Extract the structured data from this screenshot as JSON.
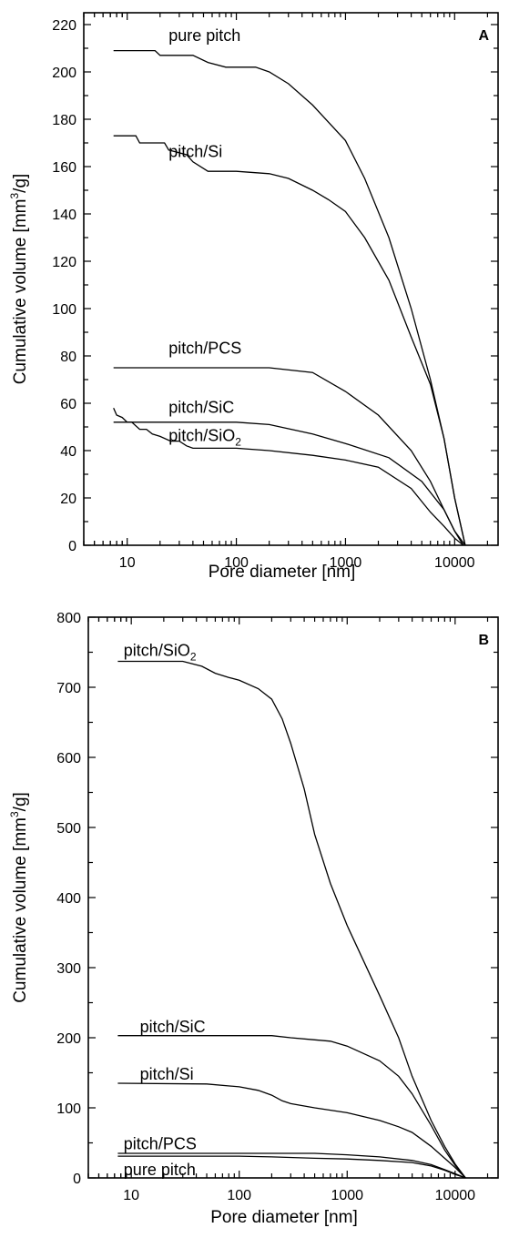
{
  "chart_data": [
    {
      "type": "line",
      "panel_label": "A",
      "xlabel": "Pore diameter [nm]",
      "ylabel": "Cumulative volume [mm³/g]",
      "ylabel_main": "Cumulative volume [mm",
      "ylabel_sup": "3",
      "ylabel_end": "/g]",
      "x_scale": "log",
      "xlim": [
        4,
        25000
      ],
      "ylim": [
        0,
        225
      ],
      "x_ticks": [
        10,
        100,
        1000,
        10000
      ],
      "x_tick_labels": [
        "10",
        "100",
        "1000",
        "10000"
      ],
      "y_ticks": [
        0,
        20,
        40,
        60,
        80,
        100,
        120,
        140,
        160,
        180,
        200,
        220
      ],
      "y_tick_labels": [
        "0",
        "20",
        "40",
        "60",
        "80",
        "100",
        "120",
        "140",
        "160",
        "180",
        "200",
        "220"
      ],
      "series": [
        {
          "name": "pure pitch",
          "label_main": "pure pitch",
          "label_sub": "",
          "x": [
            7.5,
            18,
            20,
            40,
            55,
            80,
            100,
            150,
            200,
            300,
            500,
            1000,
            1500,
            2500,
            4000,
            6000,
            8000,
            10000,
            12500
          ],
          "y": [
            209,
            209,
            207,
            207,
            204,
            202,
            202,
            202,
            200,
            195,
            186,
            171,
            155,
            130,
            100,
            70,
            45,
            20,
            0
          ],
          "label_x": 24,
          "label_y": 213
        },
        {
          "name": "pitch/Si",
          "label_main": "pitch/Si",
          "label_sub": "",
          "x": [
            7.5,
            12,
            13,
            22,
            24,
            35,
            40,
            55,
            70,
            100,
            200,
            300,
            500,
            700,
            1000,
            1500,
            2500,
            4000,
            6000,
            8000,
            10000,
            12500
          ],
          "y": [
            173,
            173,
            170,
            170,
            167,
            165,
            162,
            158,
            158,
            158,
            157,
            155,
            150,
            146,
            141,
            130,
            112,
            88,
            68,
            45,
            20,
            0
          ],
          "label_x": 24,
          "label_y": 164
        },
        {
          "name": "pitch/PCS",
          "label_main": "pitch/PCS",
          "label_sub": "",
          "x": [
            7.5,
            100,
            200,
            500,
            1000,
            2000,
            4000,
            6000,
            8000,
            10000,
            12000
          ],
          "y": [
            75,
            75,
            75,
            73,
            65,
            55,
            40,
            27,
            15,
            6,
            0
          ],
          "label_x": 24,
          "label_y": 81
        },
        {
          "name": "pitch/SiC",
          "label_main": "pitch/SiC",
          "label_sub": "",
          "x": [
            7.5,
            100,
            200,
            500,
            1000,
            2500,
            5000,
            8000,
            10000,
            12500
          ],
          "y": [
            52,
            52,
            51,
            47,
            43,
            37,
            27,
            15,
            6,
            0
          ],
          "label_x": 24,
          "label_y": 56
        },
        {
          "name": "pitch/SiO2",
          "label_main": "pitch/SiO",
          "label_sub": "2",
          "x": [
            7.5,
            8,
            9,
            10,
            11,
            13,
            15,
            17,
            20,
            25,
            30,
            35,
            40,
            100,
            200,
            500,
            1000,
            2000,
            4000,
            6000,
            8000,
            10000,
            12000
          ],
          "y": [
            58,
            55,
            54,
            52,
            52,
            49,
            49,
            47,
            46,
            44,
            44,
            42,
            41,
            41,
            40,
            38,
            36,
            33,
            24,
            14,
            8,
            3,
            0
          ],
          "label_x": 24,
          "label_y": 44
        }
      ],
      "grid": false
    },
    {
      "type": "line",
      "panel_label": "B",
      "xlabel": "Pore diameter [nm]",
      "ylabel": "Cumulative volume [mm³/g]",
      "ylabel_main": "Cumulative volume [mm",
      "ylabel_sup": "3",
      "ylabel_end": "/g]",
      "x_scale": "log",
      "xlim": [
        4,
        25000
      ],
      "ylim": [
        0,
        800
      ],
      "x_ticks": [
        10,
        100,
        1000,
        10000
      ],
      "x_tick_labels": [
        "10",
        "100",
        "1000",
        "10000"
      ],
      "y_ticks": [
        0,
        100,
        200,
        300,
        400,
        500,
        600,
        700,
        800
      ],
      "y_tick_labels": [
        "0",
        "100",
        "200",
        "300",
        "400",
        "500",
        "600",
        "700",
        "800"
      ],
      "series": [
        {
          "name": "pitch/SiO2",
          "label_main": "pitch/SiO",
          "label_sub": "2",
          "x": [
            7.5,
            30,
            45,
            60,
            80,
            100,
            150,
            200,
            250,
            300,
            400,
            500,
            700,
            1000,
            2000,
            3000,
            4000,
            6000,
            8000,
            10000,
            12500
          ],
          "y": [
            737,
            737,
            730,
            720,
            714,
            710,
            698,
            683,
            655,
            620,
            555,
            490,
            420,
            360,
            260,
            200,
            145,
            82,
            45,
            20,
            0
          ],
          "label_x": 8.5,
          "label_y": 745
        },
        {
          "name": "pitch/SiC",
          "label_main": "pitch/SiC",
          "label_sub": "",
          "x": [
            7.5,
            100,
            200,
            300,
            500,
            700,
            1000,
            2000,
            3000,
            4000,
            6000,
            8000,
            10000,
            12500
          ],
          "y": [
            203,
            203,
            203,
            200,
            197,
            195,
            188,
            167,
            145,
            120,
            75,
            40,
            18,
            0
          ],
          "label_x": 12,
          "label_y": 208
        },
        {
          "name": "pitch/Si",
          "label_main": "pitch/Si",
          "label_sub": "",
          "x": [
            7.5,
            50,
            100,
            150,
            200,
            250,
            300,
            500,
            1000,
            2000,
            3000,
            4000,
            6000,
            8000,
            10000,
            12500
          ],
          "y": [
            135,
            134,
            130,
            125,
            118,
            110,
            106,
            100,
            93,
            82,
            73,
            65,
            45,
            28,
            15,
            0
          ],
          "label_x": 12,
          "label_y": 140
        },
        {
          "name": "pitch/PCS",
          "label_main": "pitch/PCS",
          "label_sub": "",
          "x": [
            7.5,
            500,
            1000,
            2000,
            4000,
            6000,
            8000,
            10000,
            12500
          ],
          "y": [
            35,
            35,
            33,
            30,
            25,
            19,
            12,
            6,
            0
          ],
          "label_x": 8.5,
          "label_y": 41
        },
        {
          "name": "pure pitch",
          "label_main": "pure pitch",
          "label_sub": "",
          "x": [
            7.5,
            100,
            200,
            500,
            1000,
            2000,
            4000,
            6000,
            8000,
            10000,
            12500
          ],
          "y": [
            31,
            31,
            30,
            28,
            27,
            25,
            22,
            17,
            11,
            5,
            0
          ],
          "label_x": 8.5,
          "label_y": 4
        }
      ],
      "grid": false
    }
  ]
}
